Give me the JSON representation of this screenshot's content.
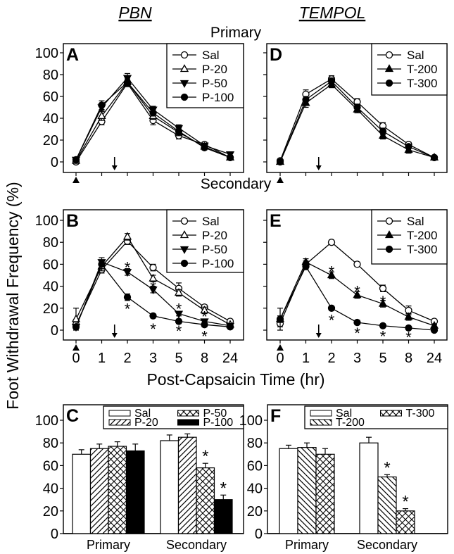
{
  "titles": {
    "pbn": "PBN",
    "tempol": "TEMPOL",
    "primary": "Primary",
    "secondary": "Secondary",
    "ylabel": "Foot Withdrawal Frequency (%)",
    "xlabel": "Post-Capsaicin Time (hr)"
  },
  "colors": {
    "ink": "#000000",
    "background": "#ffffff"
  },
  "chart_data": [
    {
      "panel": "A",
      "type": "line",
      "group": "PBN",
      "area": "Primary",
      "x": [
        "0",
        "1",
        "2",
        "3",
        "5",
        "8",
        "24"
      ],
      "ylim": [
        0,
        100
      ],
      "yticks": [
        0,
        20,
        40,
        60,
        80,
        100
      ],
      "show_xtick_labels": false,
      "show_ytick_labels": true,
      "arrow_at": 1.5,
      "triangle_at": 0,
      "series": [
        {
          "name": "Sal",
          "marker": "open-circle",
          "values": [
            0,
            37,
            72,
            38,
            24,
            16,
            4
          ],
          "errors": [
            2,
            3,
            3,
            4,
            3,
            2,
            1
          ]
        },
        {
          "name": "P-20",
          "marker": "open-triangle",
          "values": [
            1,
            42,
            73,
            42,
            27,
            14,
            4
          ],
          "errors": [
            2,
            4,
            4,
            3,
            3,
            2,
            1
          ]
        },
        {
          "name": "P-50",
          "marker": "filled-triangle-down",
          "values": [
            2,
            50,
            77,
            48,
            31,
            15,
            7
          ],
          "errors": [
            2,
            3,
            4,
            3,
            3,
            2,
            1
          ]
        },
        {
          "name": "P-100",
          "marker": "filled-circle",
          "values": [
            2,
            52,
            73,
            45,
            28,
            13,
            4
          ],
          "errors": [
            2,
            4,
            3,
            3,
            3,
            2,
            1
          ]
        }
      ],
      "asterisks": []
    },
    {
      "panel": "B",
      "type": "line",
      "group": "PBN",
      "area": "Secondary",
      "x": [
        "0",
        "1",
        "2",
        "3",
        "5",
        "8",
        "24"
      ],
      "ylim": [
        0,
        100
      ],
      "yticks": [
        0,
        20,
        40,
        60,
        80,
        100
      ],
      "show_xtick_labels": true,
      "show_ytick_labels": true,
      "arrow_at": 1.5,
      "triangle_at": 0,
      "series": [
        {
          "name": "Sal",
          "marker": "open-circle",
          "values": [
            5,
            55,
            81,
            57,
            38,
            21,
            8
          ],
          "errors": [
            3,
            3,
            3,
            3,
            5,
            2,
            2
          ]
        },
        {
          "name": "P-20",
          "marker": "open-triangle",
          "values": [
            10,
            58,
            85,
            47,
            34,
            18,
            5
          ],
          "errors": [
            10,
            4,
            3,
            3,
            3,
            3,
            1
          ]
        },
        {
          "name": "P-50",
          "marker": "filled-triangle-down",
          "values": [
            3,
            62,
            53,
            37,
            15,
            8,
            4
          ],
          "errors": [
            2,
            4,
            3,
            3,
            2,
            2,
            1
          ]
        },
        {
          "name": "P-100",
          "marker": "filled-circle",
          "values": [
            3,
            60,
            30,
            13,
            8,
            5,
            3
          ],
          "errors": [
            2,
            4,
            3,
            2,
            2,
            2,
            1
          ]
        }
      ],
      "asterisks": [
        {
          "x": "2",
          "y": 60
        },
        {
          "x": "3",
          "y": 42
        },
        {
          "x": "5",
          "y": 22
        },
        {
          "x": "8",
          "y": 15
        },
        {
          "x": "2",
          "y": 22
        },
        {
          "x": "3",
          "y": 4
        },
        {
          "x": "5",
          "y": 2
        },
        {
          "x": "8",
          "y": -3
        }
      ]
    },
    {
      "panel": "C",
      "type": "bar",
      "group": "PBN",
      "categories": [
        "Primary",
        "Secondary"
      ],
      "ylim": [
        0,
        100
      ],
      "yticks": [
        0,
        20,
        40,
        60,
        80,
        100
      ],
      "series": [
        {
          "name": "Sal",
          "pattern": "white",
          "values": [
            70,
            82
          ],
          "errors": [
            4,
            5
          ],
          "significant": [
            false,
            false
          ]
        },
        {
          "name": "P-20",
          "pattern": "diag-forward",
          "values": [
            75,
            85
          ],
          "errors": [
            4,
            3
          ],
          "significant": [
            false,
            false
          ]
        },
        {
          "name": "P-50",
          "pattern": "crosshatch",
          "values": [
            77,
            58
          ],
          "errors": [
            4,
            4
          ],
          "significant": [
            false,
            true
          ]
        },
        {
          "name": "P-100",
          "pattern": "solid-black",
          "values": [
            73,
            30
          ],
          "errors": [
            6,
            4
          ],
          "significant": [
            false,
            true
          ]
        }
      ]
    },
    {
      "panel": "D",
      "type": "line",
      "group": "TEMPOL",
      "area": "Primary",
      "x": [
        "0",
        "1",
        "2",
        "3",
        "5",
        "8",
        "24"
      ],
      "ylim": [
        0,
        100
      ],
      "yticks": [
        0,
        20,
        40,
        60,
        80,
        100
      ],
      "show_xtick_labels": false,
      "show_ytick_labels": false,
      "arrow_at": 1.5,
      "triangle_at": 0,
      "series": [
        {
          "name": "Sal",
          "marker": "open-circle",
          "values": [
            1,
            62,
            76,
            55,
            33,
            16,
            4
          ],
          "errors": [
            1,
            4,
            3,
            3,
            3,
            2,
            1
          ]
        },
        {
          "name": "T-200",
          "marker": "filled-triangle",
          "values": [
            0,
            54,
            71,
            48,
            24,
            11,
            4
          ],
          "errors": [
            1,
            4,
            3,
            3,
            3,
            3,
            1
          ]
        },
        {
          "name": "T-300",
          "marker": "filled-circle",
          "values": [
            0,
            57,
            74,
            50,
            28,
            14,
            4
          ],
          "errors": [
            1,
            3,
            3,
            3,
            3,
            2,
            1
          ]
        }
      ],
      "asterisks": []
    },
    {
      "panel": "E",
      "type": "line",
      "group": "TEMPOL",
      "area": "Secondary",
      "x": [
        "0",
        "1",
        "2",
        "3",
        "5",
        "8",
        "24"
      ],
      "ylim": [
        0,
        100
      ],
      "yticks": [
        0,
        20,
        40,
        60,
        80,
        100
      ],
      "show_xtick_labels": true,
      "show_ytick_labels": false,
      "arrow_at": 1.5,
      "triangle_at": 0,
      "series": [
        {
          "name": "Sal",
          "marker": "open-circle",
          "values": [
            6,
            60,
            80,
            60,
            38,
            18,
            8
          ],
          "errors": [
            3,
            3,
            2,
            2,
            3,
            4,
            2
          ]
        },
        {
          "name": "T-200",
          "marker": "filled-triangle",
          "values": [
            10,
            62,
            50,
            32,
            24,
            12,
            4
          ],
          "errors": [
            10,
            3,
            3,
            3,
            3,
            3,
            1
          ]
        },
        {
          "name": "T-300",
          "marker": "filled-circle",
          "values": [
            10,
            58,
            20,
            7,
            4,
            2,
            0
          ],
          "errors": [
            3,
            3,
            2,
            2,
            1,
            1,
            1
          ]
        }
      ],
      "asterisks": [
        {
          "x": "2",
          "y": 56
        },
        {
          "x": "3",
          "y": 38
        },
        {
          "x": "5",
          "y": 29
        },
        {
          "x": "2",
          "y": 12
        },
        {
          "x": "3",
          "y": 0
        },
        {
          "x": "5",
          "y": -3
        },
        {
          "x": "8",
          "y": -4
        }
      ]
    },
    {
      "panel": "F",
      "type": "bar",
      "group": "TEMPOL",
      "categories": [
        "Primary",
        "Secondary"
      ],
      "ylim": [
        0,
        100
      ],
      "yticks": [
        0,
        20,
        40,
        60,
        80,
        100
      ],
      "series": [
        {
          "name": "Sal",
          "pattern": "white",
          "values": [
            75,
            80
          ],
          "errors": [
            3,
            5
          ],
          "significant": [
            false,
            false
          ]
        },
        {
          "name": "T-200",
          "pattern": "diag-back",
          "values": [
            76,
            50
          ],
          "errors": [
            4,
            2
          ],
          "significant": [
            false,
            true
          ]
        },
        {
          "name": "T-300",
          "pattern": "crosshatch",
          "values": [
            70,
            20
          ],
          "errors": [
            5,
            2
          ],
          "significant": [
            false,
            true
          ]
        }
      ]
    }
  ]
}
